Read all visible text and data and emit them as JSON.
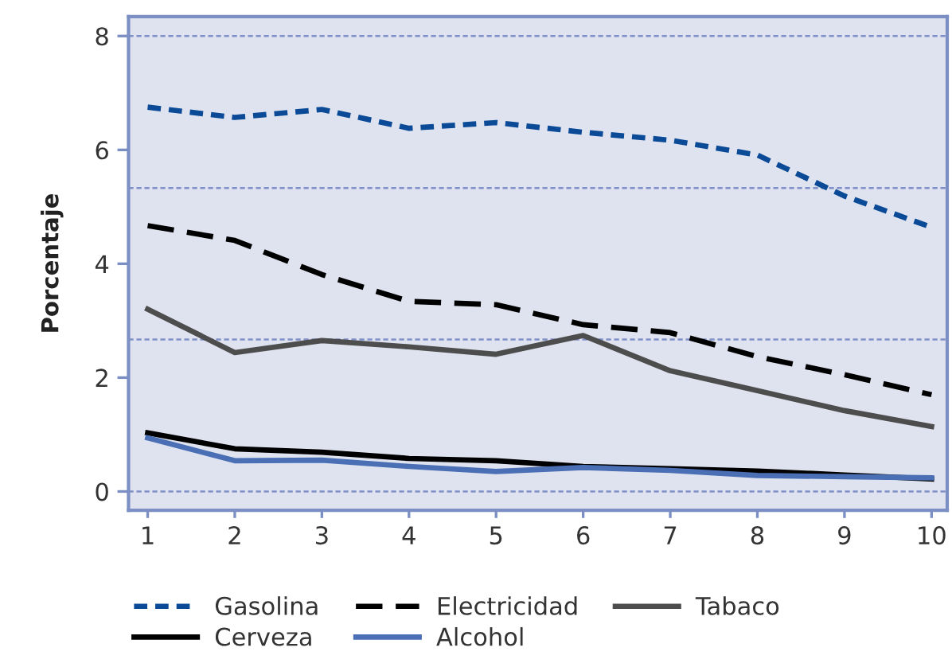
{
  "chart_data": {
    "type": "line",
    "ylabel": "Porcentaje",
    "x": [
      1,
      2,
      3,
      4,
      5,
      6,
      7,
      8,
      9,
      10
    ],
    "xlim": [
      0.78,
      10.18
    ],
    "xticks": [
      1,
      2,
      3,
      4,
      5,
      6,
      7,
      8,
      9,
      10
    ],
    "ylim": [
      -0.33,
      8.34
    ],
    "yticks": [
      0,
      2,
      4,
      6,
      8
    ],
    "grid": false,
    "legend": "bottom",
    "marker": "none",
    "ref_lines": [
      {
        "axis": "y",
        "value": 0,
        "color": "#8090c8",
        "line_style": "dotted"
      },
      {
        "axis": "y",
        "value": 2.67,
        "color": "#8090c8",
        "line_style": "dotted"
      },
      {
        "axis": "y",
        "value": 5.33,
        "color": "#8090c8",
        "line_style": "dotted"
      },
      {
        "axis": "y",
        "value": 8,
        "color": "#8090c8",
        "line_style": "dotted"
      }
    ],
    "series": [
      {
        "name": "Gasolina",
        "color": "#0a4a96",
        "line_style": "dotted",
        "values": [
          6.75,
          6.57,
          6.71,
          6.38,
          6.48,
          6.31,
          6.17,
          5.91,
          5.19,
          4.64
        ]
      },
      {
        "name": "Electricidad",
        "color": "#000000",
        "line_style": "dashed",
        "values": [
          4.67,
          4.41,
          3.81,
          3.34,
          3.28,
          2.93,
          2.79,
          2.37,
          2.05,
          1.7
        ]
      },
      {
        "name": "Tabaco",
        "color": "#4d4d4d",
        "line_style": "solid",
        "values": [
          3.2,
          2.44,
          2.65,
          2.54,
          2.41,
          2.74,
          2.12,
          1.77,
          1.42,
          1.14
        ]
      },
      {
        "name": "Cerveza",
        "color": "#000000",
        "line_style": "solid",
        "values": [
          1.03,
          0.75,
          0.69,
          0.58,
          0.54,
          0.44,
          0.4,
          0.36,
          0.29,
          0.22
        ]
      },
      {
        "name": "Alcohol",
        "color": "#4a6fb5",
        "line_style": "solid",
        "values": [
          0.94,
          0.54,
          0.55,
          0.44,
          0.35,
          0.42,
          0.37,
          0.28,
          0.26,
          0.24
        ]
      }
    ]
  }
}
